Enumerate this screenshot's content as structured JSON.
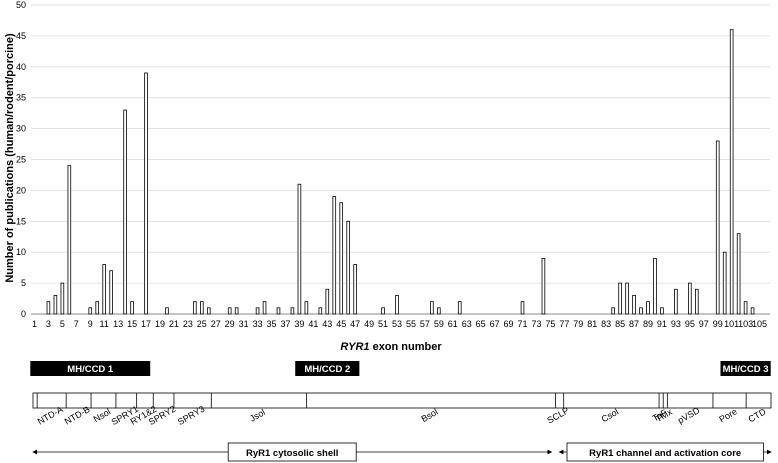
{
  "chart_data": {
    "type": "bar",
    "xlabel_prefix": "RYR1",
    "xlabel_suffix": " exon number",
    "ylabel": "Number of publications (human/rodent/porcine)",
    "ylim": [
      0,
      50
    ],
    "yticks": [
      0,
      5,
      10,
      15,
      20,
      25,
      30,
      35,
      40,
      45,
      50
    ],
    "exons": [
      1,
      2,
      3,
      4,
      5,
      6,
      7,
      8,
      9,
      10,
      11,
      12,
      13,
      14,
      15,
      16,
      17,
      18,
      19,
      20,
      21,
      22,
      23,
      24,
      25,
      26,
      27,
      28,
      29,
      30,
      31,
      32,
      33,
      34,
      35,
      36,
      37,
      38,
      39,
      40,
      41,
      42,
      43,
      44,
      45,
      46,
      47,
      48,
      49,
      50,
      51,
      52,
      53,
      54,
      55,
      56,
      57,
      58,
      59,
      60,
      61,
      62,
      63,
      64,
      65,
      66,
      67,
      68,
      69,
      70,
      71,
      72,
      73,
      74,
      75,
      76,
      77,
      78,
      79,
      80,
      81,
      82,
      83,
      84,
      85,
      86,
      87,
      88,
      89,
      90,
      91,
      92,
      93,
      94,
      95,
      96,
      97,
      98,
      99,
      100,
      101,
      102,
      103,
      104,
      105,
      106
    ],
    "values": [
      0,
      0,
      2,
      3,
      5,
      24,
      0,
      0,
      1,
      2,
      8,
      7,
      0,
      33,
      2,
      0,
      39,
      0,
      0,
      1,
      0,
      0,
      0,
      2,
      2,
      1,
      0,
      0,
      1,
      1,
      0,
      0,
      1,
      2,
      0,
      1,
      0,
      1,
      21,
      2,
      0,
      1,
      4,
      19,
      18,
      15,
      8,
      0,
      0,
      0,
      1,
      0,
      3,
      0,
      0,
      0,
      0,
      2,
      1,
      0,
      0,
      2,
      0,
      0,
      0,
      0,
      0,
      0,
      0,
      0,
      2,
      0,
      0,
      9,
      0,
      0,
      0,
      0,
      0,
      0,
      0,
      0,
      0,
      1,
      5,
      5,
      3,
      1,
      2,
      9,
      1,
      0,
      4,
      0,
      5,
      4,
      0,
      0,
      28,
      10,
      46,
      13,
      2,
      1,
      0,
      0
    ],
    "tick_labels": [
      "1",
      "3",
      "5",
      "7",
      "9",
      "11",
      "13",
      "15",
      "17",
      "19",
      "21",
      "23",
      "25",
      "27",
      "29",
      "31",
      "33",
      "35",
      "37",
      "39",
      "41",
      "43",
      "45",
      "47",
      "49",
      "51",
      "53",
      "55",
      "57",
      "59",
      "61",
      "63",
      "65",
      "67",
      "69",
      "71",
      "73",
      "75",
      "77",
      "79",
      "81",
      "83",
      "85",
      "87",
      "89",
      "91",
      "93",
      "95",
      "97",
      "99",
      "101",
      "103",
      "105"
    ],
    "hotspots": [
      {
        "label": "MH/CCD 1",
        "from": 1,
        "to": 17
      },
      {
        "label": "MH/CCD 2",
        "from": 39,
        "to": 47
      },
      {
        "label": "MH/CCD 3",
        "from": 100,
        "to": 106
      }
    ],
    "domains": [
      {
        "label": "NTD-A",
        "from": 1,
        "to": 8
      },
      {
        "label": "NTD-B",
        "from": 8,
        "to": 14
      },
      {
        "label": "Nsol",
        "from": 14,
        "to": 20
      },
      {
        "label": "SPRY1",
        "from": 20,
        "to": 25
      },
      {
        "label": "RY1&2",
        "from": 25,
        "to": 29
      },
      {
        "label": "SPRY2",
        "from": 29,
        "to": 34
      },
      {
        "label": "SPRY3",
        "from": 34,
        "to": 43
      },
      {
        "label": "Jsol",
        "from": 43,
        "to": 66
      },
      {
        "label": "Bsol",
        "from": 66,
        "to": 126
      },
      {
        "label": "SCLP",
        "from": 126,
        "to": 128
      },
      {
        "label": "Csol",
        "from": 128,
        "to": 151
      },
      {
        "label": "TaF",
        "from": 151,
        "to": 152
      },
      {
        "label": "TMx",
        "from": 152,
        "to": 153
      },
      {
        "label": "pVSD",
        "from": 153,
        "to": 164
      },
      {
        "label": "Pore",
        "from": 164,
        "to": 172
      },
      {
        "label": "CTD",
        "from": 172,
        "to": 178
      }
    ],
    "domain_scale_max": 178,
    "regions": [
      {
        "label": "RyR1 cytosolic shell",
        "from": 0,
        "to": 126
      },
      {
        "label": "RyR1 channel and activation core",
        "from": 126,
        "to": 178
      }
    ]
  }
}
